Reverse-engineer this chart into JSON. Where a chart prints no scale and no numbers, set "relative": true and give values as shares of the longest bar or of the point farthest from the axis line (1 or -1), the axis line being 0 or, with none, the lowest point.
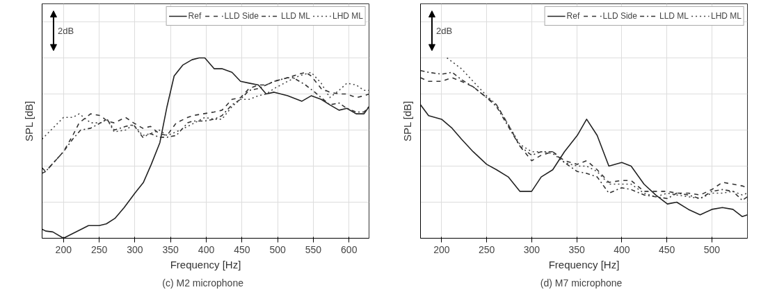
{
  "chart_data": [
    {
      "type": "line",
      "relative": true,
      "xlabel": "Frequency [Hz]",
      "ylabel": "SPL [dB]",
      "xlim": [
        170,
        628
      ],
      "xticks": [
        200,
        250,
        300,
        350,
        400,
        450,
        500,
        550,
        600
      ],
      "grid": true,
      "legend": "top right",
      "marker": "none",
      "annotations": [
        "2dB",
        "(c)   M2 microphone"
      ],
      "series": [
        {
          "name": "Ref",
          "color": "#222222",
          "line_style": "solid",
          "x": [
            170,
            175,
            185,
            200,
            210,
            225,
            235,
            250,
            260,
            272,
            285,
            300,
            312,
            323,
            335,
            345,
            355,
            367,
            380,
            390,
            398,
            411,
            422,
            436,
            448,
            460,
            473,
            484,
            495,
            514,
            534,
            547,
            561,
            573,
            586,
            597,
            610,
            621,
            628
          ],
          "values": [
            0.05,
            0.04,
            0.035,
            0.0,
            0.02,
            0.05,
            0.07,
            0.07,
            0.08,
            0.11,
            0.17,
            0.25,
            0.31,
            0.41,
            0.53,
            0.73,
            0.9,
            0.96,
            0.99,
            1.0,
            1.0,
            0.94,
            0.94,
            0.92,
            0.87,
            0.86,
            0.85,
            0.8,
            0.81,
            0.79,
            0.76,
            0.79,
            0.77,
            0.74,
            0.71,
            0.72,
            0.69,
            0.69,
            0.73
          ]
        },
        {
          "name": "LLD Side",
          "color": "#333333",
          "line_style": "dashed",
          "x": [
            170,
            175,
            184,
            200,
            213,
            222,
            238,
            252,
            261,
            271,
            287,
            298,
            311,
            322,
            334,
            345,
            358,
            374,
            381,
            411,
            422,
            436,
            448,
            460,
            473,
            484,
            495,
            514,
            530,
            539,
            547,
            561,
            573,
            586,
            597,
            610,
            621,
            628
          ],
          "values": [
            0.36,
            0.37,
            0.41,
            0.48,
            0.57,
            0.64,
            0.69,
            0.68,
            0.65,
            0.64,
            0.67,
            0.64,
            0.61,
            0.62,
            0.58,
            0.57,
            0.64,
            0.67,
            0.68,
            0.7,
            0.71,
            0.77,
            0.78,
            0.83,
            0.85,
            0.85,
            0.87,
            0.89,
            0.91,
            0.92,
            0.9,
            0.83,
            0.81,
            0.8,
            0.8,
            0.78,
            0.79,
            0.8
          ]
        },
        {
          "name": "LLD ML",
          "color": "#333333",
          "line_style": "dashdot",
          "x": [
            170,
            175,
            184,
            200,
            213,
            224,
            238,
            252,
            261,
            271,
            287,
            298,
            311,
            322,
            334,
            345,
            358,
            374,
            381,
            398,
            411,
            422,
            436,
            448,
            460,
            473,
            484,
            495,
            514,
            522,
            539,
            552,
            573,
            586,
            597,
            610,
            621,
            628
          ],
          "values": [
            0.39,
            0.37,
            0.41,
            0.48,
            0.55,
            0.6,
            0.61,
            0.64,
            0.66,
            0.6,
            0.62,
            0.63,
            0.56,
            0.58,
            0.56,
            0.56,
            0.57,
            0.64,
            0.65,
            0.65,
            0.66,
            0.68,
            0.74,
            0.77,
            0.82,
            0.83,
            0.85,
            0.87,
            0.89,
            0.89,
            0.85,
            0.81,
            0.74,
            0.75,
            0.72,
            0.7,
            0.7,
            0.73
          ]
        },
        {
          "name": "LHD ML",
          "color": "#444444",
          "line_style": "dotted",
          "x": [
            170,
            185,
            200,
            213,
            222,
            238,
            252,
            261,
            271,
            287,
            298,
            311,
            322,
            334,
            345,
            358,
            374,
            398,
            411,
            422,
            436,
            448,
            460,
            473,
            484,
            495,
            514,
            530,
            547,
            561,
            573,
            586,
            597,
            610,
            621,
            628
          ],
          "values": [
            0.55,
            0.61,
            0.67,
            0.67,
            0.69,
            0.64,
            0.64,
            0.66,
            0.59,
            0.6,
            0.63,
            0.57,
            0.58,
            0.6,
            0.57,
            0.59,
            0.62,
            0.67,
            0.66,
            0.66,
            0.73,
            0.77,
            0.77,
            0.79,
            0.8,
            0.83,
            0.87,
            0.9,
            0.92,
            0.86,
            0.78,
            0.82,
            0.86,
            0.85,
            0.82,
            0.82
          ]
        }
      ]
    },
    {
      "type": "line",
      "relative": true,
      "xlabel": "Frequency [Hz]",
      "ylabel": "SPL [dB]",
      "xlim": [
        176.6,
        539.5
      ],
      "xticks": [
        200,
        250,
        300,
        350,
        400,
        450,
        500
      ],
      "grid": true,
      "legend": "top right",
      "marker": "none",
      "annotations": [
        "2dB",
        "(d)   M7 microphone"
      ],
      "series": [
        {
          "name": "Ref",
          "color": "#222222",
          "line_style": "solid",
          "x": [
            176.6,
            185.6,
            200,
            211.7,
            222,
            235,
            250,
            261,
            274,
            287,
            300,
            310.6,
            323.4,
            336.4,
            350.6,
            361,
            372.7,
            385.7,
            400,
            410.4,
            424.7,
            437.7,
            450.7,
            461,
            474,
            487,
            500,
            511.7,
            523.4,
            533.8,
            539.5
          ],
          "values": [
            0.74,
            0.68,
            0.66,
            0.61,
            0.55,
            0.48,
            0.41,
            0.38,
            0.34,
            0.26,
            0.26,
            0.34,
            0.38,
            0.48,
            0.57,
            0.66,
            0.57,
            0.4,
            0.42,
            0.4,
            0.3,
            0.24,
            0.19,
            0.2,
            0.16,
            0.13,
            0.16,
            0.17,
            0.16,
            0.12,
            0.13
          ]
        },
        {
          "name": "LLD Side",
          "color": "#333333",
          "line_style": "dashed",
          "x": [
            176.6,
            185.6,
            200,
            211.7,
            222,
            235,
            250,
            261,
            274,
            287,
            300,
            310.6,
            323.4,
            336.4,
            350.6,
            361,
            372.7,
            385.7,
            400,
            410.4,
            424.7,
            437.7,
            450.7,
            461,
            474,
            487,
            500,
            511.7,
            523.4,
            533.8,
            539.5
          ],
          "values": [
            0.89,
            0.87,
            0.87,
            0.89,
            0.87,
            0.84,
            0.78,
            0.74,
            0.63,
            0.51,
            0.43,
            0.46,
            0.48,
            0.43,
            0.41,
            0.43,
            0.38,
            0.31,
            0.32,
            0.32,
            0.26,
            0.26,
            0.26,
            0.25,
            0.25,
            0.24,
            0.27,
            0.31,
            0.3,
            0.29,
            0.28
          ]
        },
        {
          "name": "LLD ML",
          "color": "#333333",
          "line_style": "dashdot",
          "x": [
            176.6,
            185.6,
            200,
            211.7,
            222,
            235,
            250,
            261,
            274,
            287,
            300,
            310.6,
            323.4,
            336.4,
            350.6,
            361,
            372.7,
            385.7,
            400,
            410.4,
            424.7,
            437.7,
            450.7,
            461,
            474,
            487,
            500,
            511.7,
            523.4,
            533.8,
            539.5
          ],
          "values": [
            0.93,
            0.92,
            0.91,
            0.92,
            0.88,
            0.84,
            0.78,
            0.73,
            0.62,
            0.51,
            0.46,
            0.48,
            0.48,
            0.42,
            0.37,
            0.36,
            0.34,
            0.25,
            0.28,
            0.27,
            0.24,
            0.23,
            0.22,
            0.25,
            0.24,
            0.22,
            0.26,
            0.27,
            0.26,
            0.21,
            0.23
          ]
        },
        {
          "name": "LHD ML",
          "color": "#444444",
          "line_style": "dotted",
          "x": [
            206,
            222,
            235,
            250,
            261,
            274,
            287,
            300,
            310.6,
            323.4,
            336.4,
            350.6,
            361,
            372.7,
            385.7,
            400,
            410.4,
            424.7,
            437.7,
            450.7,
            461,
            474,
            487,
            500,
            511.7,
            523.4,
            533.8,
            539.5
          ],
          "values": [
            1.0,
            0.94,
            0.87,
            0.79,
            0.74,
            0.63,
            0.52,
            0.48,
            0.48,
            0.47,
            0.42,
            0.4,
            0.4,
            0.37,
            0.3,
            0.3,
            0.3,
            0.25,
            0.23,
            0.25,
            0.24,
            0.23,
            0.22,
            0.25,
            0.25,
            0.26,
            0.24,
            0.25
          ]
        }
      ]
    }
  ]
}
